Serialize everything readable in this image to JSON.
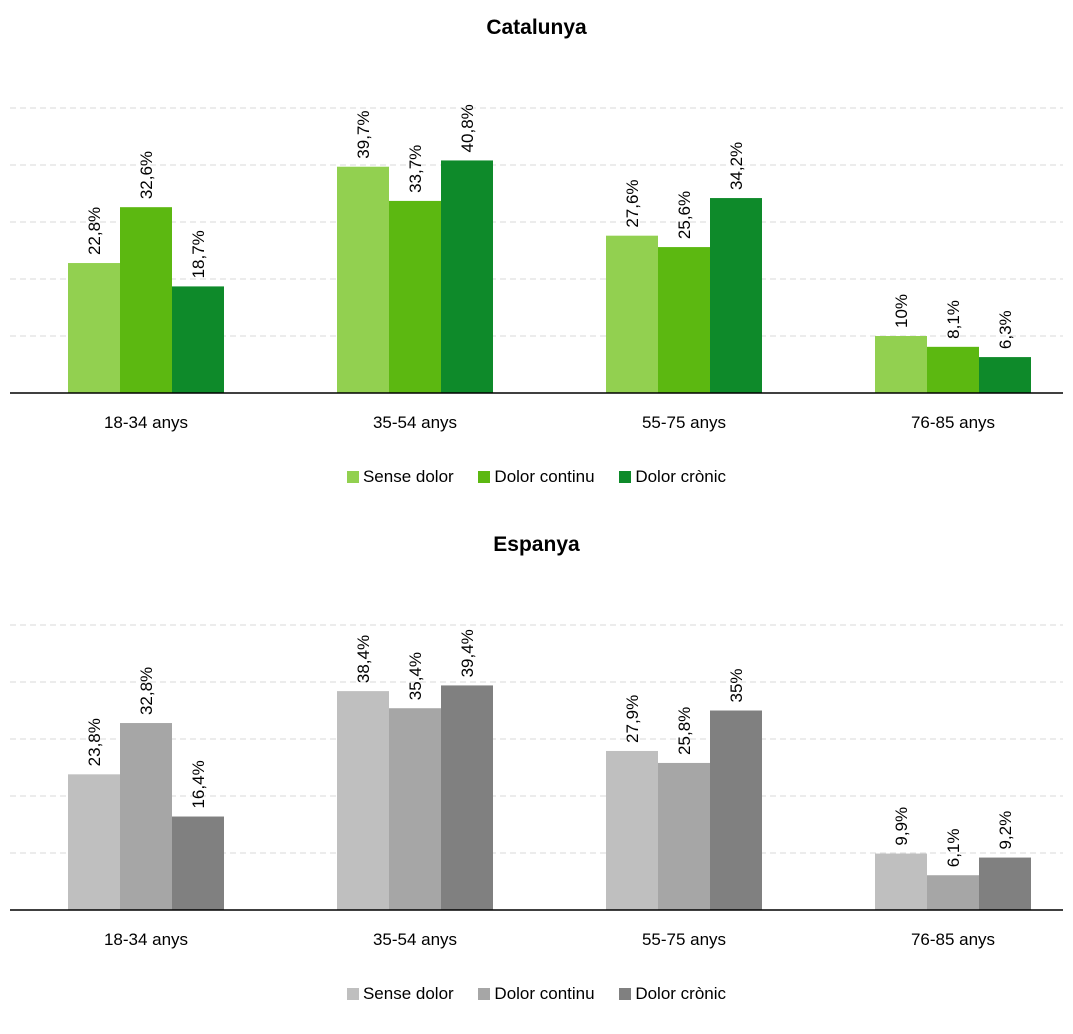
{
  "chart_data": [
    {
      "type": "bar",
      "title": "Catalunya",
      "categories": [
        "18-34 anys",
        "35-54 anys",
        "55-75 anys",
        "76-85 anys"
      ],
      "series": [
        {
          "name": "Sense dolor",
          "values": [
            22.8,
            39.7,
            27.6,
            10
          ],
          "labels": [
            "22,8%",
            "39,7%",
            "27,6%",
            "10%"
          ],
          "color": "#92d050"
        },
        {
          "name": "Dolor continu",
          "values": [
            32.6,
            33.7,
            25.6,
            8.1
          ],
          "labels": [
            "32,6%",
            "33,7%",
            "25,6%",
            "8,1%"
          ],
          "color": "#5cb811"
        },
        {
          "name": "Dolor crònic",
          "values": [
            18.7,
            40.8,
            34.2,
            6.3
          ],
          "labels": [
            "18,7%",
            "40,8%",
            "34,2%",
            "6,3%"
          ],
          "color": "#0e8a2a"
        }
      ],
      "ylim": [
        0,
        50
      ],
      "grid": true,
      "legend": "bottom"
    },
    {
      "type": "bar",
      "title": "Espanya",
      "categories": [
        "18-34 anys",
        "35-54 anys",
        "55-75 anys",
        "76-85 anys"
      ],
      "series": [
        {
          "name": "Sense dolor",
          "values": [
            23.8,
            38.4,
            27.9,
            9.9
          ],
          "labels": [
            "23,8%",
            "38,4%",
            "27,9%",
            "9,9%"
          ],
          "color": "#bfbfbf"
        },
        {
          "name": "Dolor continu",
          "values": [
            32.8,
            35.4,
            25.8,
            6.1
          ],
          "labels": [
            "32,8%",
            "35,4%",
            "25,8%",
            "6,1%"
          ],
          "color": "#a6a6a6"
        },
        {
          "name": "Dolor crònic",
          "values": [
            16.4,
            39.4,
            35,
            9.2
          ],
          "labels": [
            "16,4%",
            "39,4%",
            "35%",
            "9,2%"
          ],
          "color": "#808080"
        }
      ],
      "ylim": [
        0,
        50
      ],
      "grid": true,
      "legend": "bottom"
    }
  ]
}
